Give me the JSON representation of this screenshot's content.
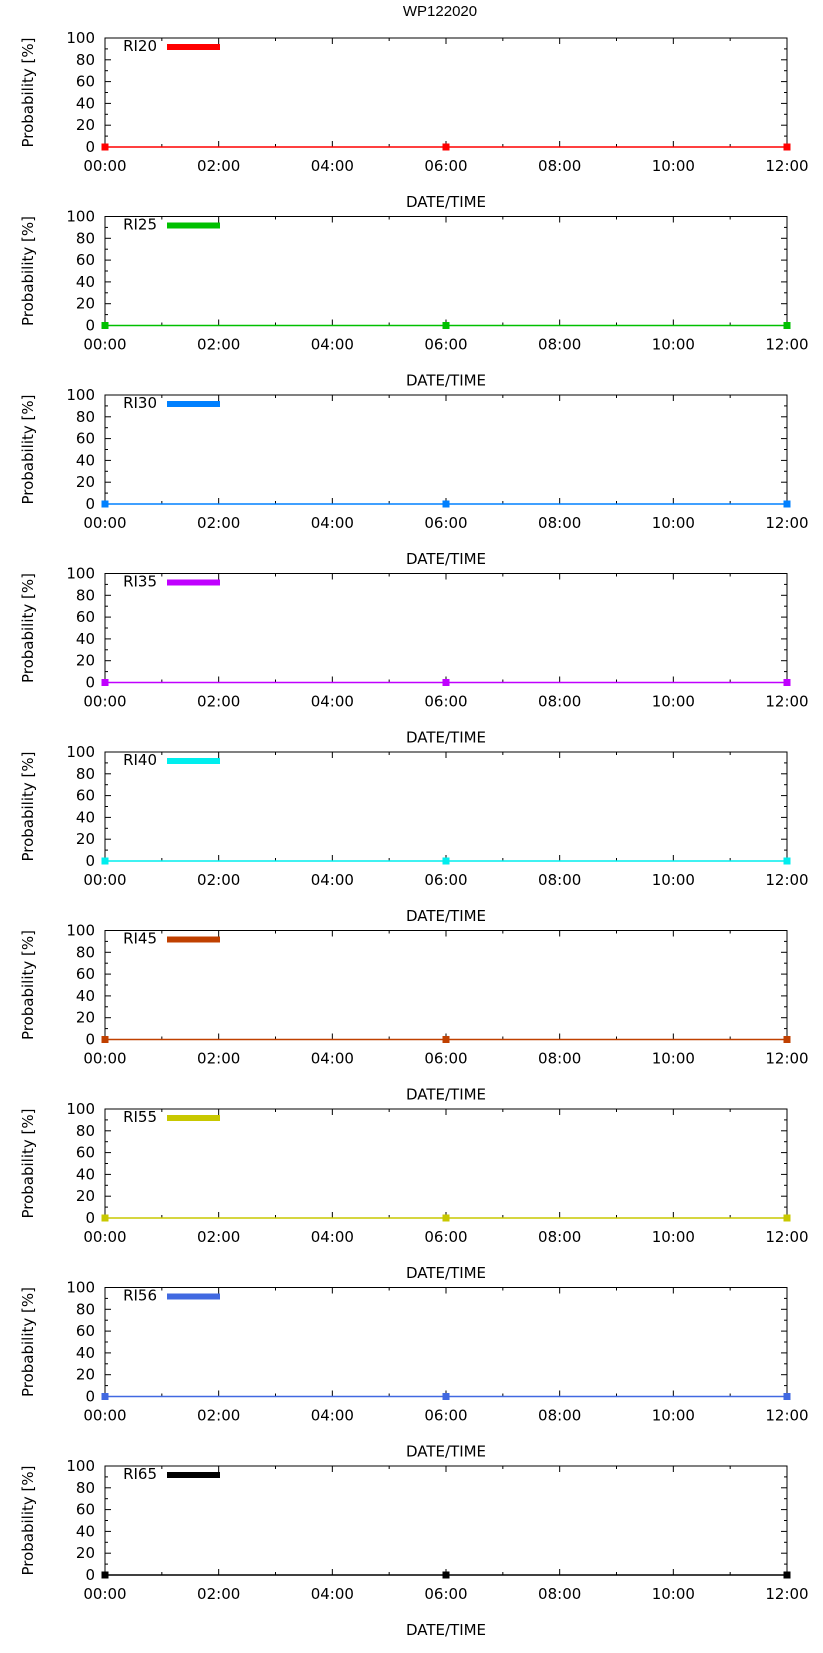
{
  "figure_title": "WP122020",
  "colors": {
    "RI20": "#ff0000",
    "RI25": "#00c000",
    "RI30": "#0080ff",
    "RI35": "#c000ff",
    "RI40": "#00eeee",
    "RI45": "#c04000",
    "RI55": "#c8c800",
    "RI56": "#4169e1",
    "RI65": "#000000"
  },
  "chart_data": [
    {
      "type": "line",
      "series_name": "RI20",
      "x": [
        "00:00",
        "06:00",
        "12:00"
      ],
      "values": [
        0,
        0,
        0
      ],
      "xlabel": "DATE/TIME",
      "ylabel": "Probability [%]",
      "xticks": [
        "00:00",
        "02:00",
        "04:00",
        "06:00",
        "08:00",
        "10:00",
        "12:00"
      ],
      "yticks": [
        0,
        20,
        40,
        60,
        80,
        100
      ],
      "ylim": [
        0,
        100
      ],
      "xlim_hours": [
        0,
        12
      ],
      "legend": "top-left"
    },
    {
      "type": "line",
      "series_name": "RI25",
      "x": [
        "00:00",
        "06:00",
        "12:00"
      ],
      "values": [
        0,
        0,
        0
      ],
      "xlabel": "DATE/TIME",
      "ylabel": "Probability [%]",
      "xticks": [
        "00:00",
        "02:00",
        "04:00",
        "06:00",
        "08:00",
        "10:00",
        "12:00"
      ],
      "yticks": [
        0,
        20,
        40,
        60,
        80,
        100
      ],
      "ylim": [
        0,
        100
      ],
      "xlim_hours": [
        0,
        12
      ],
      "legend": "top-left"
    },
    {
      "type": "line",
      "series_name": "RI30",
      "x": [
        "00:00",
        "06:00",
        "12:00"
      ],
      "values": [
        0,
        0,
        0
      ],
      "xlabel": "DATE/TIME",
      "ylabel": "Probability [%]",
      "xticks": [
        "00:00",
        "02:00",
        "04:00",
        "06:00",
        "08:00",
        "10:00",
        "12:00"
      ],
      "yticks": [
        0,
        20,
        40,
        60,
        80,
        100
      ],
      "ylim": [
        0,
        100
      ],
      "xlim_hours": [
        0,
        12
      ],
      "legend": "top-left"
    },
    {
      "type": "line",
      "series_name": "RI35",
      "x": [
        "00:00",
        "06:00",
        "12:00"
      ],
      "values": [
        0,
        0,
        0
      ],
      "xlabel": "DATE/TIME",
      "ylabel": "Probability [%]",
      "xticks": [
        "00:00",
        "02:00",
        "04:00",
        "06:00",
        "08:00",
        "10:00",
        "12:00"
      ],
      "yticks": [
        0,
        20,
        40,
        60,
        80,
        100
      ],
      "ylim": [
        0,
        100
      ],
      "xlim_hours": [
        0,
        12
      ],
      "legend": "top-left"
    },
    {
      "type": "line",
      "series_name": "RI40",
      "x": [
        "00:00",
        "06:00",
        "12:00"
      ],
      "values": [
        0,
        0,
        0
      ],
      "xlabel": "DATE/TIME",
      "ylabel": "Probability [%]",
      "xticks": [
        "00:00",
        "02:00",
        "04:00",
        "06:00",
        "08:00",
        "10:00",
        "12:00"
      ],
      "yticks": [
        0,
        20,
        40,
        60,
        80,
        100
      ],
      "ylim": [
        0,
        100
      ],
      "xlim_hours": [
        0,
        12
      ],
      "legend": "top-left"
    },
    {
      "type": "line",
      "series_name": "RI45",
      "x": [
        "00:00",
        "06:00",
        "12:00"
      ],
      "values": [
        0,
        0,
        0
      ],
      "xlabel": "DATE/TIME",
      "ylabel": "Probability [%]",
      "xticks": [
        "00:00",
        "02:00",
        "04:00",
        "06:00",
        "08:00",
        "10:00",
        "12:00"
      ],
      "yticks": [
        0,
        20,
        40,
        60,
        80,
        100
      ],
      "ylim": [
        0,
        100
      ],
      "xlim_hours": [
        0,
        12
      ],
      "legend": "top-left"
    },
    {
      "type": "line",
      "series_name": "RI55",
      "x": [
        "00:00",
        "06:00",
        "12:00"
      ],
      "values": [
        0,
        0,
        0
      ],
      "xlabel": "DATE/TIME",
      "ylabel": "Probability [%]",
      "xticks": [
        "00:00",
        "02:00",
        "04:00",
        "06:00",
        "08:00",
        "10:00",
        "12:00"
      ],
      "yticks": [
        0,
        20,
        40,
        60,
        80,
        100
      ],
      "ylim": [
        0,
        100
      ],
      "xlim_hours": [
        0,
        12
      ],
      "legend": "top-left"
    },
    {
      "type": "line",
      "series_name": "RI56",
      "x": [
        "00:00",
        "06:00",
        "12:00"
      ],
      "values": [
        0,
        0,
        0
      ],
      "xlabel": "DATE/TIME",
      "ylabel": "Probability [%]",
      "xticks": [
        "00:00",
        "02:00",
        "04:00",
        "06:00",
        "08:00",
        "10:00",
        "12:00"
      ],
      "yticks": [
        0,
        20,
        40,
        60,
        80,
        100
      ],
      "ylim": [
        0,
        100
      ],
      "xlim_hours": [
        0,
        12
      ],
      "legend": "top-left"
    },
    {
      "type": "line",
      "series_name": "RI65",
      "x": [
        "00:00",
        "06:00",
        "12:00"
      ],
      "values": [
        0,
        0,
        0
      ],
      "xlabel": "DATE/TIME",
      "ylabel": "Probability [%]",
      "xticks": [
        "00:00",
        "02:00",
        "04:00",
        "06:00",
        "08:00",
        "10:00",
        "12:00"
      ],
      "yticks": [
        0,
        20,
        40,
        60,
        80,
        100
      ],
      "ylim": [
        0,
        100
      ],
      "xlim_hours": [
        0,
        12
      ],
      "legend": "top-left"
    }
  ]
}
